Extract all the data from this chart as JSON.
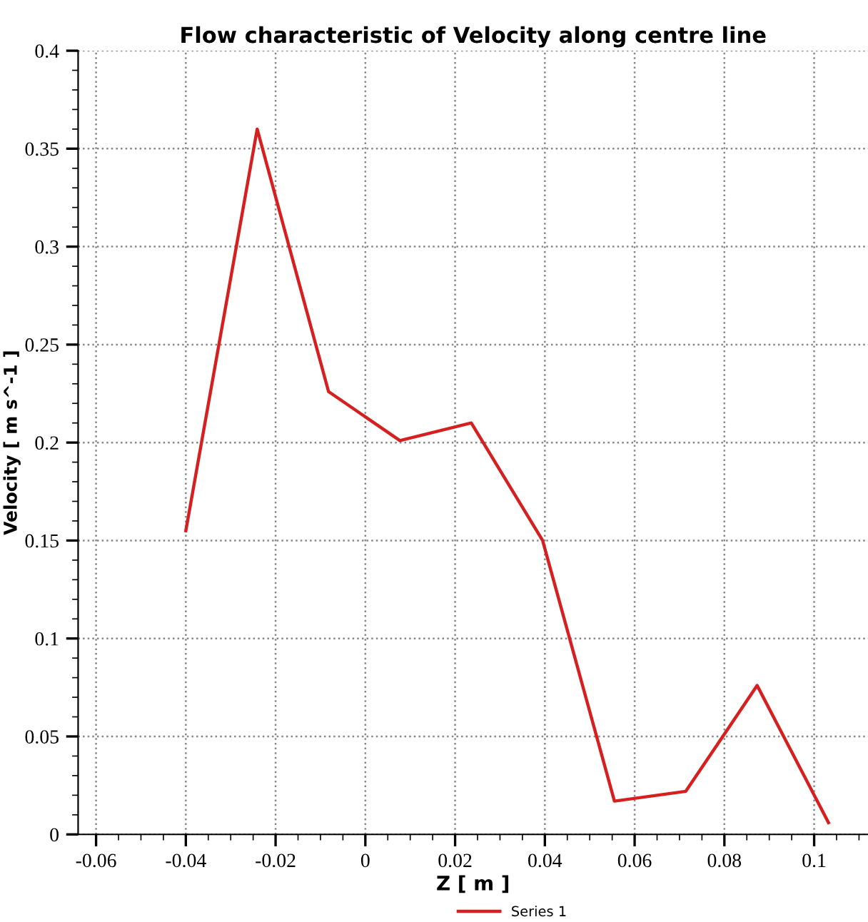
{
  "chart_data": {
    "type": "line",
    "title": "Flow characteristic of Velocity along centre line",
    "xlabel": "Z [ m ]",
    "ylabel": "Velocity [ m s^-1 ]",
    "x": [
      -0.04,
      -0.0241,
      -0.0082,
      0.0077,
      0.0236,
      0.0395,
      0.0555,
      0.0714,
      0.0873,
      0.1032
    ],
    "series": [
      {
        "name": "Series 1",
        "color": "#d62020",
        "values": [
          0.155,
          0.36,
          0.226,
          0.201,
          0.21,
          0.15,
          0.017,
          0.022,
          0.076,
          0.006
        ]
      }
    ],
    "xlim": [
      -0.064,
      0.112
    ],
    "xticks": [
      -0.06,
      -0.04,
      -0.02,
      0,
      0.02,
      0.04,
      0.06,
      0.08,
      0.1
    ],
    "ylim": [
      0,
      0.4
    ],
    "yticks": [
      0,
      0.05,
      0.1,
      0.15,
      0.2,
      0.25,
      0.3,
      0.35,
      0.4
    ],
    "grid": true,
    "legend": "bottom",
    "marker": "none",
    "line_style": "solid"
  }
}
